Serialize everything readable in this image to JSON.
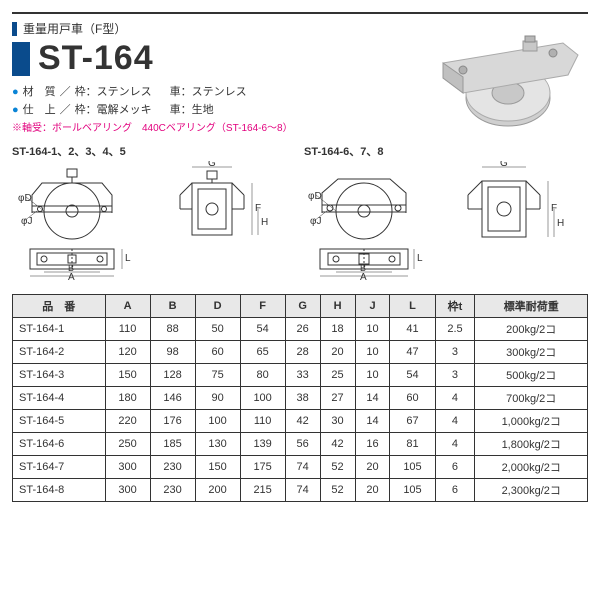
{
  "header": {
    "subtitle": "重量用戸車（F型）",
    "title": "ST-164"
  },
  "specs": {
    "material_label": "材　質",
    "material_frame": "枠：ステンレス",
    "material_wheel": "車：ステンレス",
    "finish_label": "仕　上",
    "finish_frame": "枠：電解メッキ",
    "finish_wheel": "車：生地"
  },
  "note": "※軸受：ボールベアリング　440Cベアリング（ST-164-6～8）",
  "diagram_captions": {
    "left": "ST-164-1、2、3、4、5",
    "right": "ST-164-6、7、8"
  },
  "dim_labels": [
    "A",
    "B",
    "D",
    "F",
    "G",
    "H",
    "J",
    "L",
    "φD",
    "φJ"
  ],
  "table": {
    "columns": [
      "品　番",
      "A",
      "B",
      "D",
      "F",
      "G",
      "H",
      "J",
      "L",
      "枠t",
      "標準耐荷重"
    ],
    "rows": [
      [
        "ST-164-1",
        "110",
        "88",
        "50",
        "54",
        "26",
        "18",
        "10",
        "41",
        "2.5",
        "200kg/2コ"
      ],
      [
        "ST-164-2",
        "120",
        "98",
        "60",
        "65",
        "28",
        "20",
        "10",
        "47",
        "3",
        "300kg/2コ"
      ],
      [
        "ST-164-3",
        "150",
        "128",
        "75",
        "80",
        "33",
        "25",
        "10",
        "54",
        "3",
        "500kg/2コ"
      ],
      [
        "ST-164-4",
        "180",
        "146",
        "90",
        "100",
        "38",
        "27",
        "14",
        "60",
        "4",
        "700kg/2コ"
      ],
      [
        "ST-164-5",
        "220",
        "176",
        "100",
        "110",
        "42",
        "30",
        "14",
        "67",
        "4",
        "1,000kg/2コ"
      ],
      [
        "ST-164-6",
        "250",
        "185",
        "130",
        "139",
        "56",
        "42",
        "16",
        "81",
        "4",
        "1,800kg/2コ"
      ],
      [
        "ST-164-7",
        "300",
        "230",
        "150",
        "175",
        "74",
        "52",
        "20",
        "105",
        "6",
        "2,000kg/2コ"
      ],
      [
        "ST-164-8",
        "300",
        "230",
        "200",
        "215",
        "74",
        "52",
        "20",
        "105",
        "6",
        "2,300kg/2コ"
      ]
    ]
  }
}
